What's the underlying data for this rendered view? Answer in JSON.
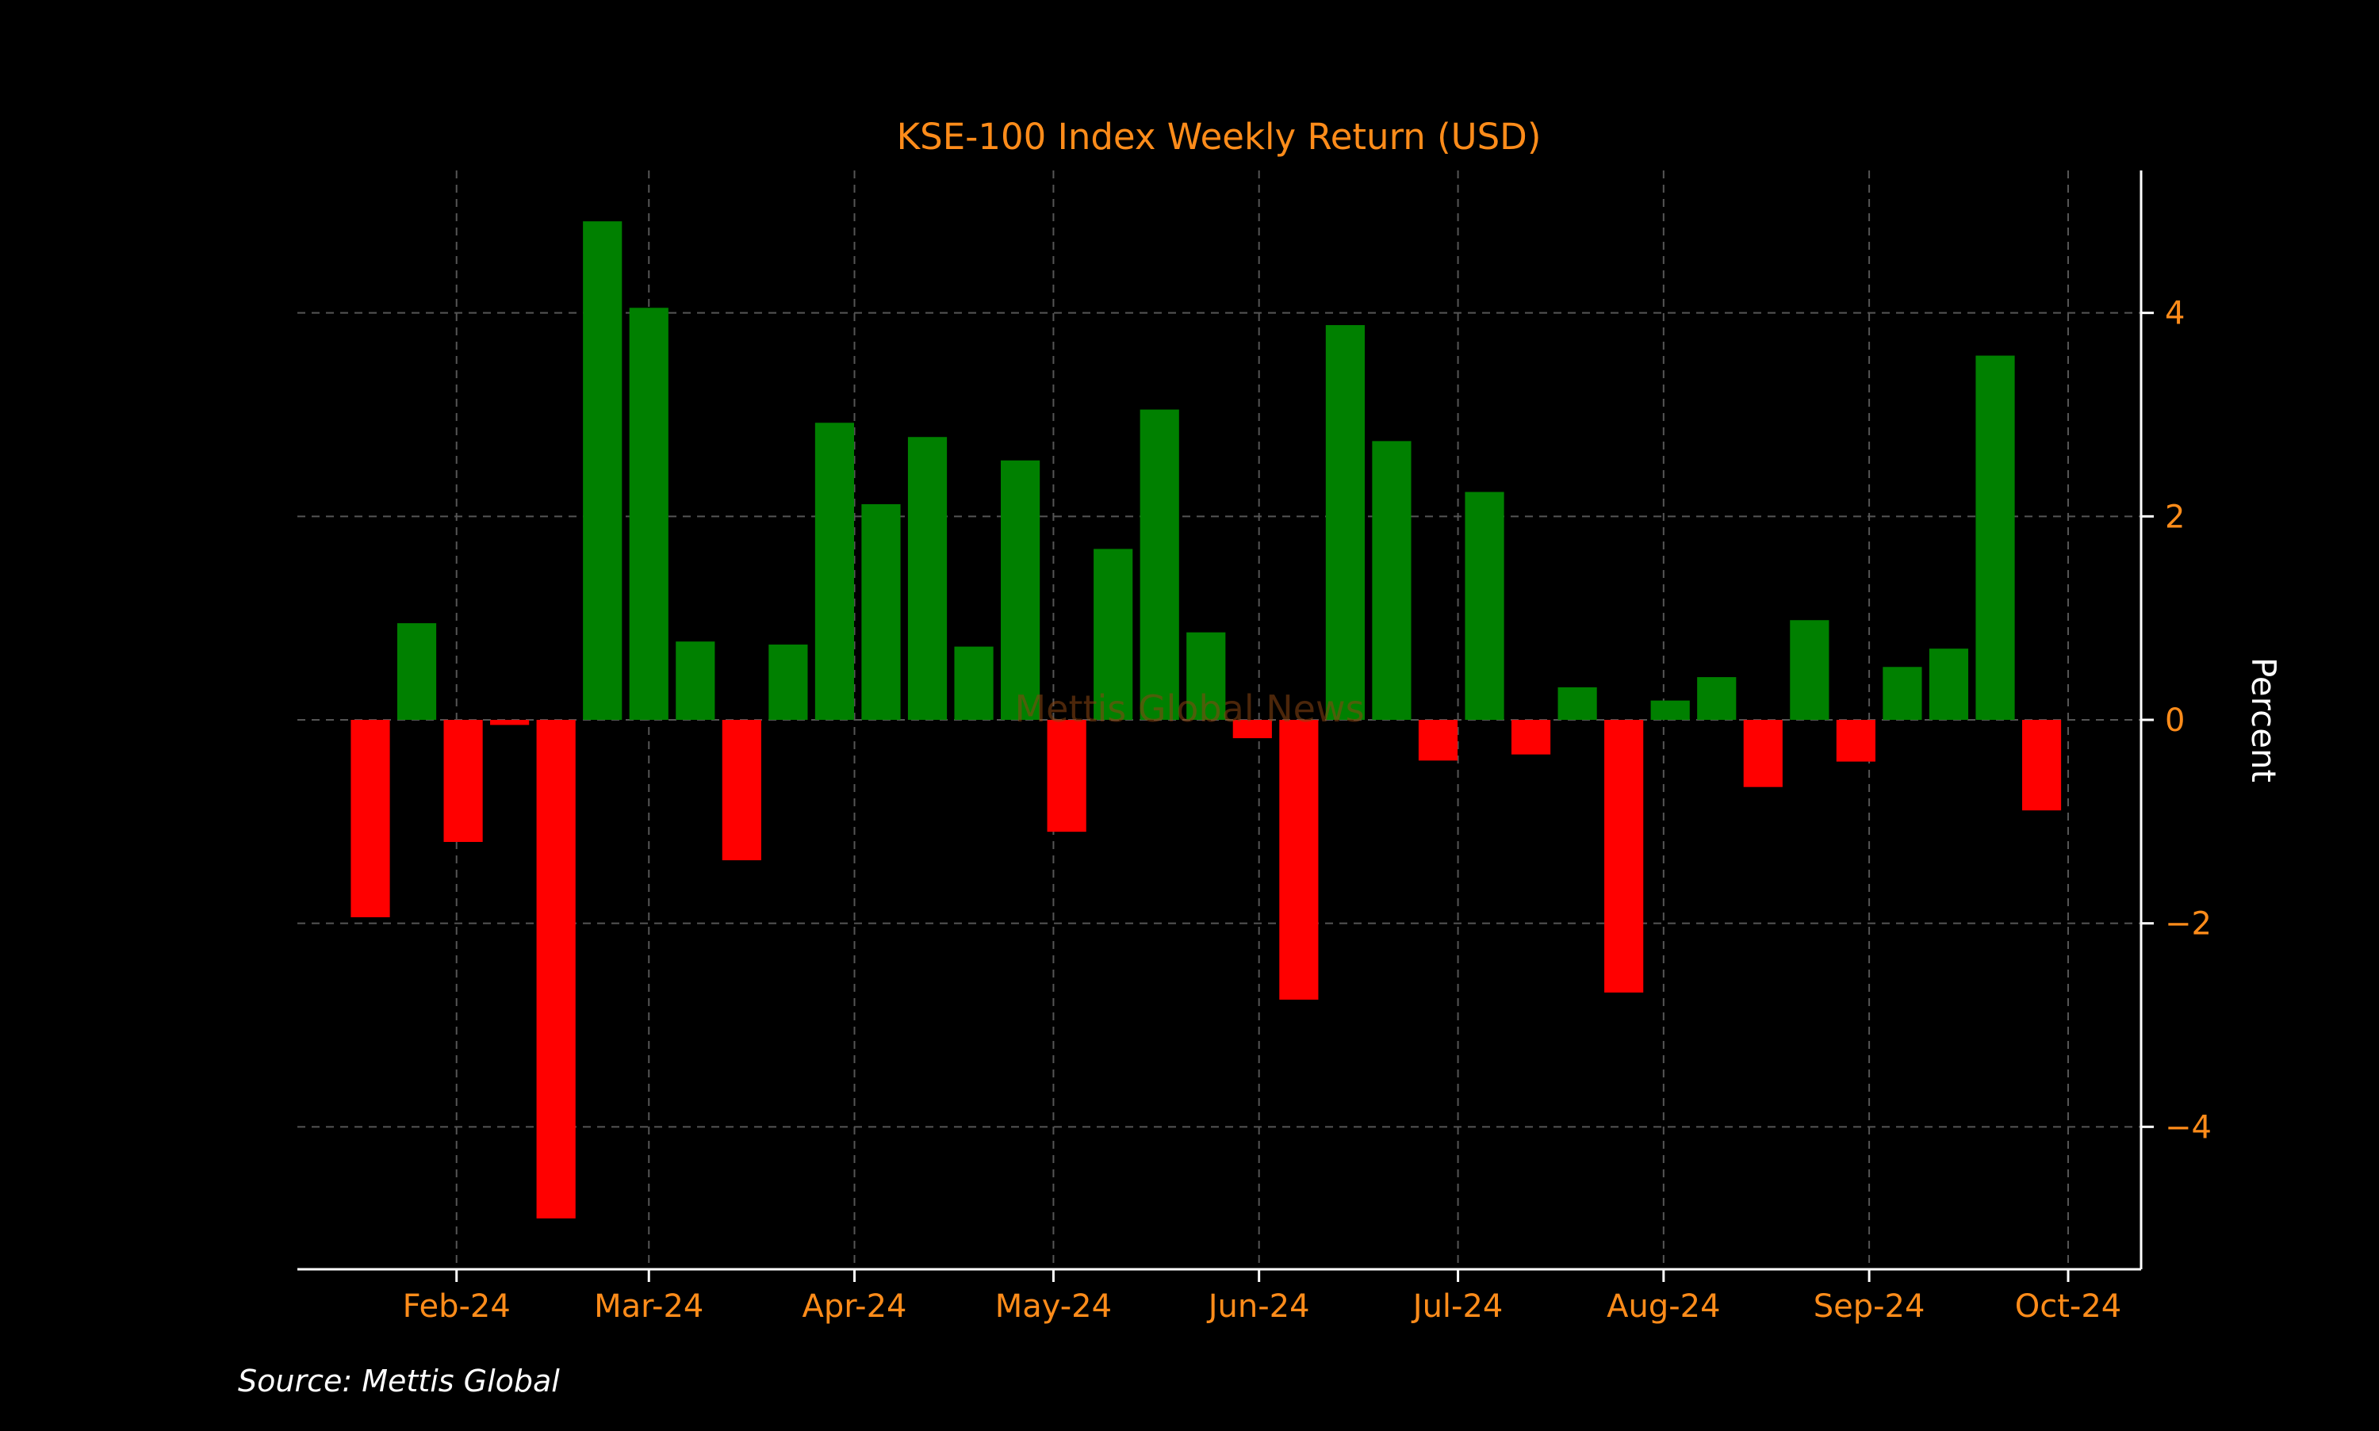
{
  "colors": {
    "background": "#000000",
    "positive": "#008000",
    "negative": "#ff0000",
    "text_accent": "#ff8c1a",
    "axis": "#ffffff",
    "grid": "#555555",
    "watermark": "#8b4513"
  },
  "watermark": "Mettis Global News",
  "source": "Source: Mettis Global",
  "chart_data": {
    "type": "bar",
    "title": "KSE-100 Index Weekly Return (USD)",
    "ylabel": "Percent",
    "xlabel": "",
    "y_axis_position": "right",
    "grid": true,
    "ylim": [
      -5.4,
      5.4
    ],
    "yticks": [
      4,
      2,
      0,
      -2,
      -4
    ],
    "ytick_labels": [
      "4",
      "2",
      "0",
      "−2",
      "−4"
    ],
    "xlim": [
      "2024-01-08",
      "2024-10-12"
    ],
    "month_ticks": [
      {
        "date": "2024-02-01",
        "label": "Feb-24"
      },
      {
        "date": "2024-03-01",
        "label": "Mar-24"
      },
      {
        "date": "2024-04-01",
        "label": "Apr-24"
      },
      {
        "date": "2024-05-01",
        "label": "May-24"
      },
      {
        "date": "2024-06-01",
        "label": "Jun-24"
      },
      {
        "date": "2024-07-01",
        "label": "Jul-24"
      },
      {
        "date": "2024-08-01",
        "label": "Aug-24"
      },
      {
        "date": "2024-09-01",
        "label": "Sep-24"
      },
      {
        "date": "2024-10-01",
        "label": "Oct-24"
      }
    ],
    "x": [
      "2024-01-19",
      "2024-01-26",
      "2024-02-02",
      "2024-02-09",
      "2024-02-16",
      "2024-02-23",
      "2024-03-01",
      "2024-03-08",
      "2024-03-15",
      "2024-03-22",
      "2024-03-29",
      "2024-04-05",
      "2024-04-12",
      "2024-04-19",
      "2024-04-26",
      "2024-05-03",
      "2024-05-10",
      "2024-05-17",
      "2024-05-24",
      "2024-05-31",
      "2024-06-07",
      "2024-06-14",
      "2024-06-21",
      "2024-06-28",
      "2024-07-05",
      "2024-07-12",
      "2024-07-19",
      "2024-07-26",
      "2024-08-02",
      "2024-08-09",
      "2024-08-16",
      "2024-08-23",
      "2024-08-30",
      "2024-09-06",
      "2024-09-13",
      "2024-09-20",
      "2024-09-27"
    ],
    "values": [
      -1.94,
      0.95,
      -1.2,
      -0.05,
      -4.9,
      4.9,
      4.05,
      0.77,
      -1.38,
      0.74,
      2.92,
      2.12,
      2.78,
      0.72,
      2.55,
      -1.1,
      1.68,
      3.05,
      0.86,
      -0.18,
      -2.75,
      3.88,
      2.74,
      -0.4,
      2.24,
      -0.34,
      0.32,
      -2.68,
      0.19,
      0.42,
      -0.66,
      0.98,
      -0.41,
      0.52,
      0.7,
      3.58,
      -0.89
    ]
  }
}
